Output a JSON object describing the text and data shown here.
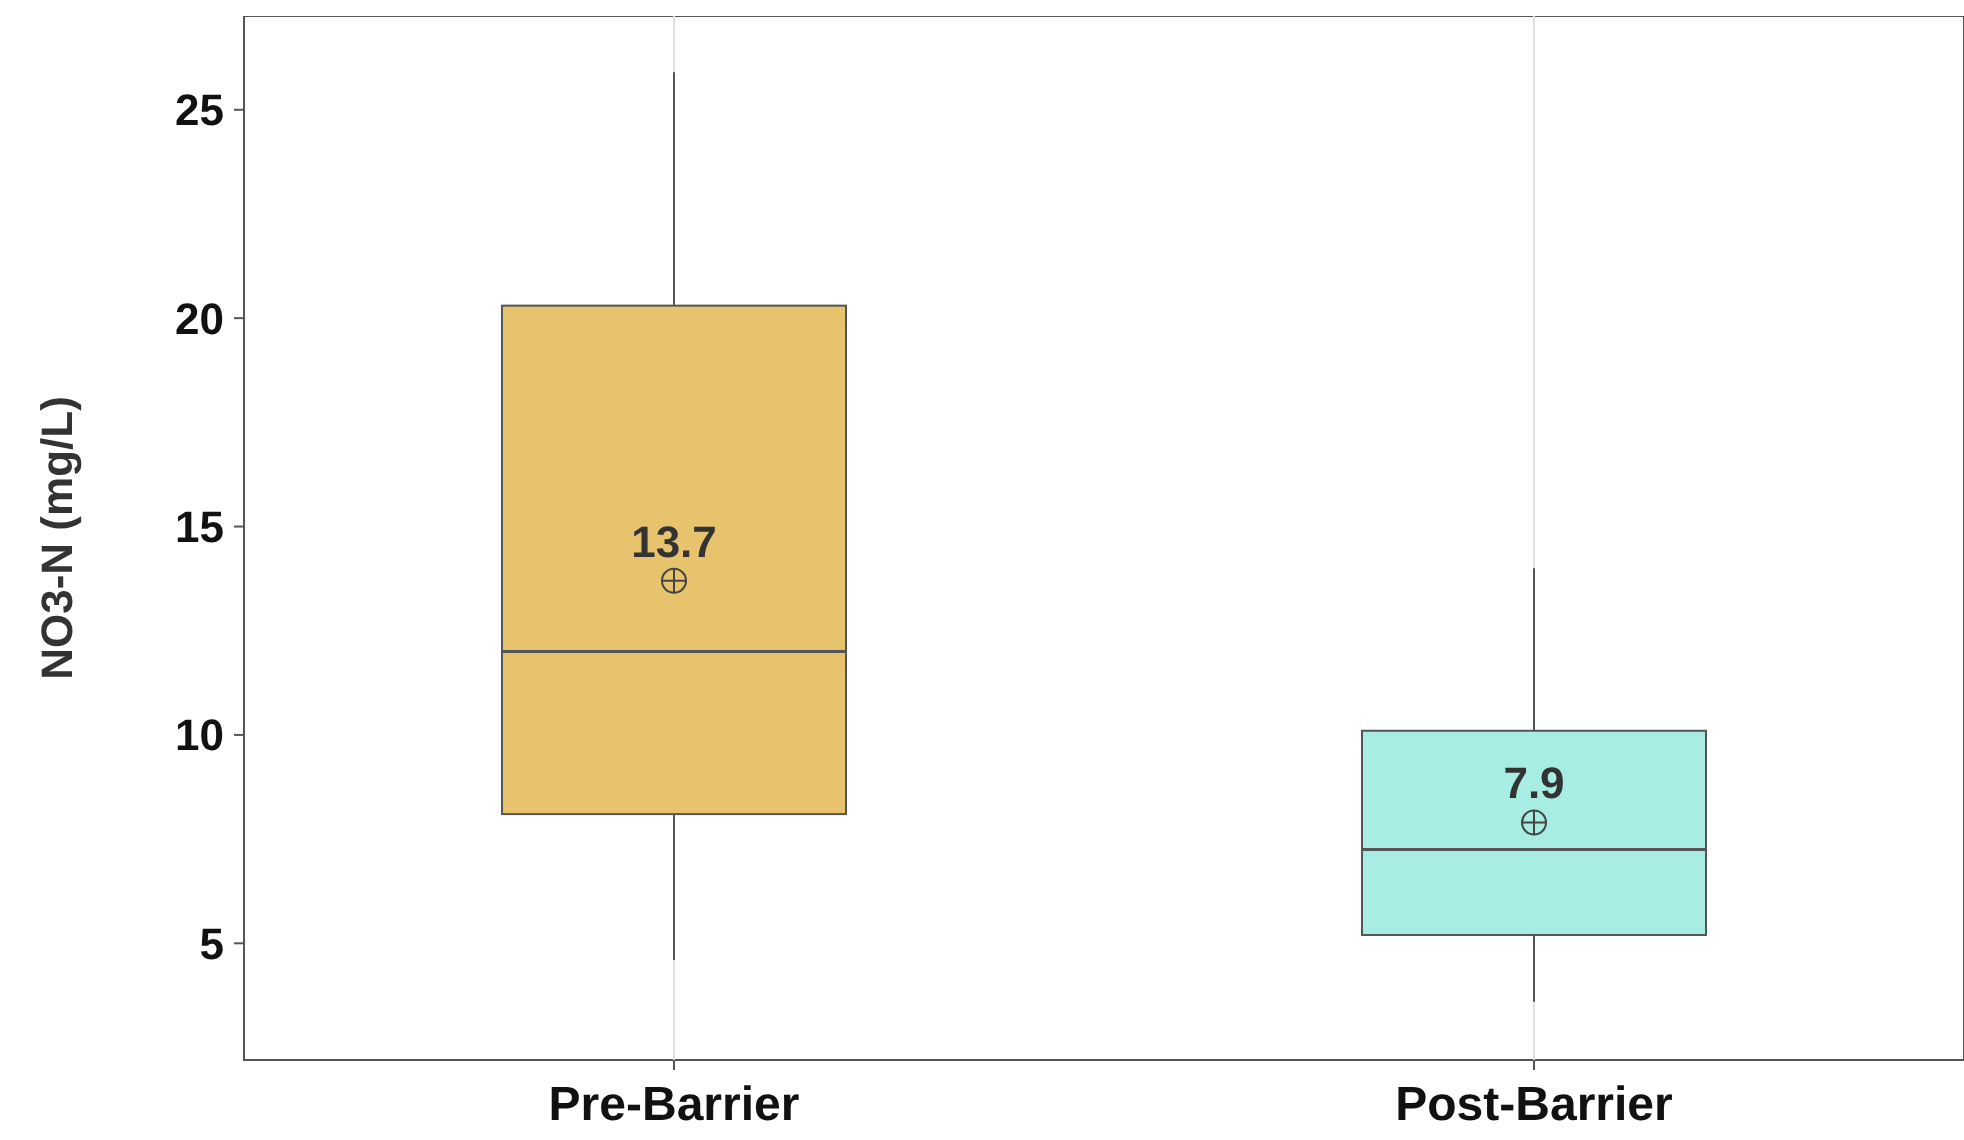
{
  "chart_data": {
    "type": "box",
    "ylabel": "NO3-N (mg/L)",
    "categories": [
      "Pre-Barrier",
      "Post-Barrier"
    ],
    "colors": [
      "#e8c36e",
      "#a8ede4"
    ],
    "boxes": [
      {
        "low": 4.6,
        "q1": 8.1,
        "median": 12.0,
        "q3": 20.3,
        "high": 25.9,
        "mean": 13.7
      },
      {
        "low": 3.6,
        "q1": 5.2,
        "median": 7.25,
        "q3": 10.1,
        "high": 14.0,
        "mean": 7.9
      }
    ],
    "annotations": [
      "13.7",
      "7.9"
    ],
    "ylim": [
      2.2,
      27.25
    ],
    "yticks": [
      5,
      10,
      15,
      20,
      25
    ],
    "grid": "x",
    "marker": "circle"
  }
}
